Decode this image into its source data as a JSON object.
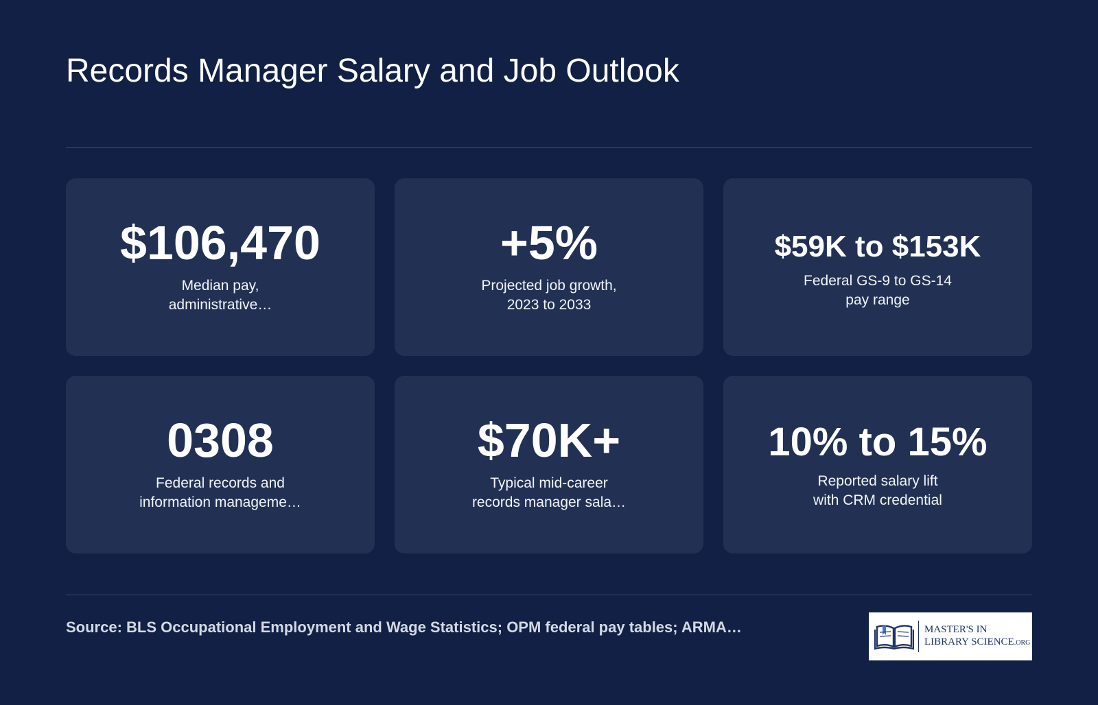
{
  "title": "Records Manager Salary and Job Outlook",
  "stats": [
    {
      "value": "$106,470",
      "line1": "Median pay,",
      "line2": "administrative…"
    },
    {
      "value": "+5%",
      "line1": "Projected job growth,",
      "line2": "2023 to 2033"
    },
    {
      "value": "$59K to $153K",
      "line1": "Federal GS-9 to GS-14",
      "line2": "pay range"
    },
    {
      "value": "0308",
      "line1": "Federal records and",
      "line2": "information manageme…"
    },
    {
      "value": "$70K+",
      "line1": "Typical mid-career",
      "line2": "records manager sala…"
    },
    {
      "value": "10% to 15%",
      "line1": "Reported salary lift",
      "line2": "with CRM credential"
    }
  ],
  "source": "Source: BLS Occupational Employment and Wage Statistics; OPM federal pay tables; ARMA…",
  "logo": {
    "line1": "MASTER'S IN",
    "line2": "LIBRARY SCIENCE",
    "suffix": ".ORG",
    "icon": "open-book-icon"
  },
  "colors": {
    "background": "#112044",
    "card": "#223153",
    "logo_navy": "#1f3366"
  }
}
